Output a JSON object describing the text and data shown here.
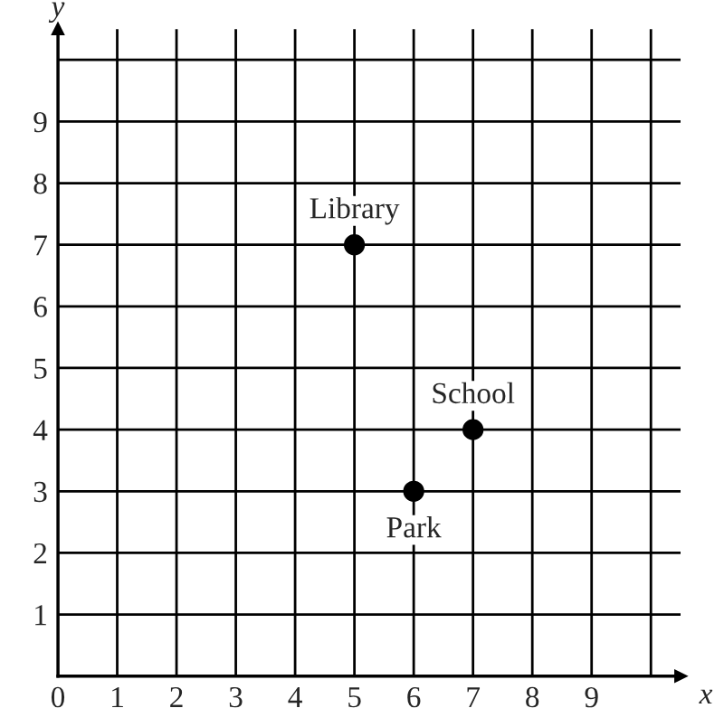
{
  "chart_data": {
    "type": "scatter",
    "xlabel": "x",
    "ylabel": "y",
    "x": [
      5,
      7,
      6
    ],
    "values": [
      7,
      4,
      3
    ],
    "color": "#000000",
    "marker": "circle",
    "annotations": [
      {
        "text": "Library",
        "x": 5,
        "y": 7
      },
      {
        "text": "School",
        "x": 7,
        "y": 4
      },
      {
        "text": "Park",
        "x": 6,
        "y": 3
      }
    ],
    "xlim": [
      0,
      10.5
    ],
    "ylim": [
      0,
      10.5
    ],
    "xticks": [
      0,
      1,
      2,
      3,
      4,
      5,
      6,
      7,
      8,
      9,
      {
        "value": 10,
        "label": null
      }
    ],
    "yticks": [
      1,
      2,
      3,
      4,
      5,
      6,
      7,
      8,
      9,
      {
        "value": 10,
        "label": null
      }
    ],
    "grid": true
  }
}
